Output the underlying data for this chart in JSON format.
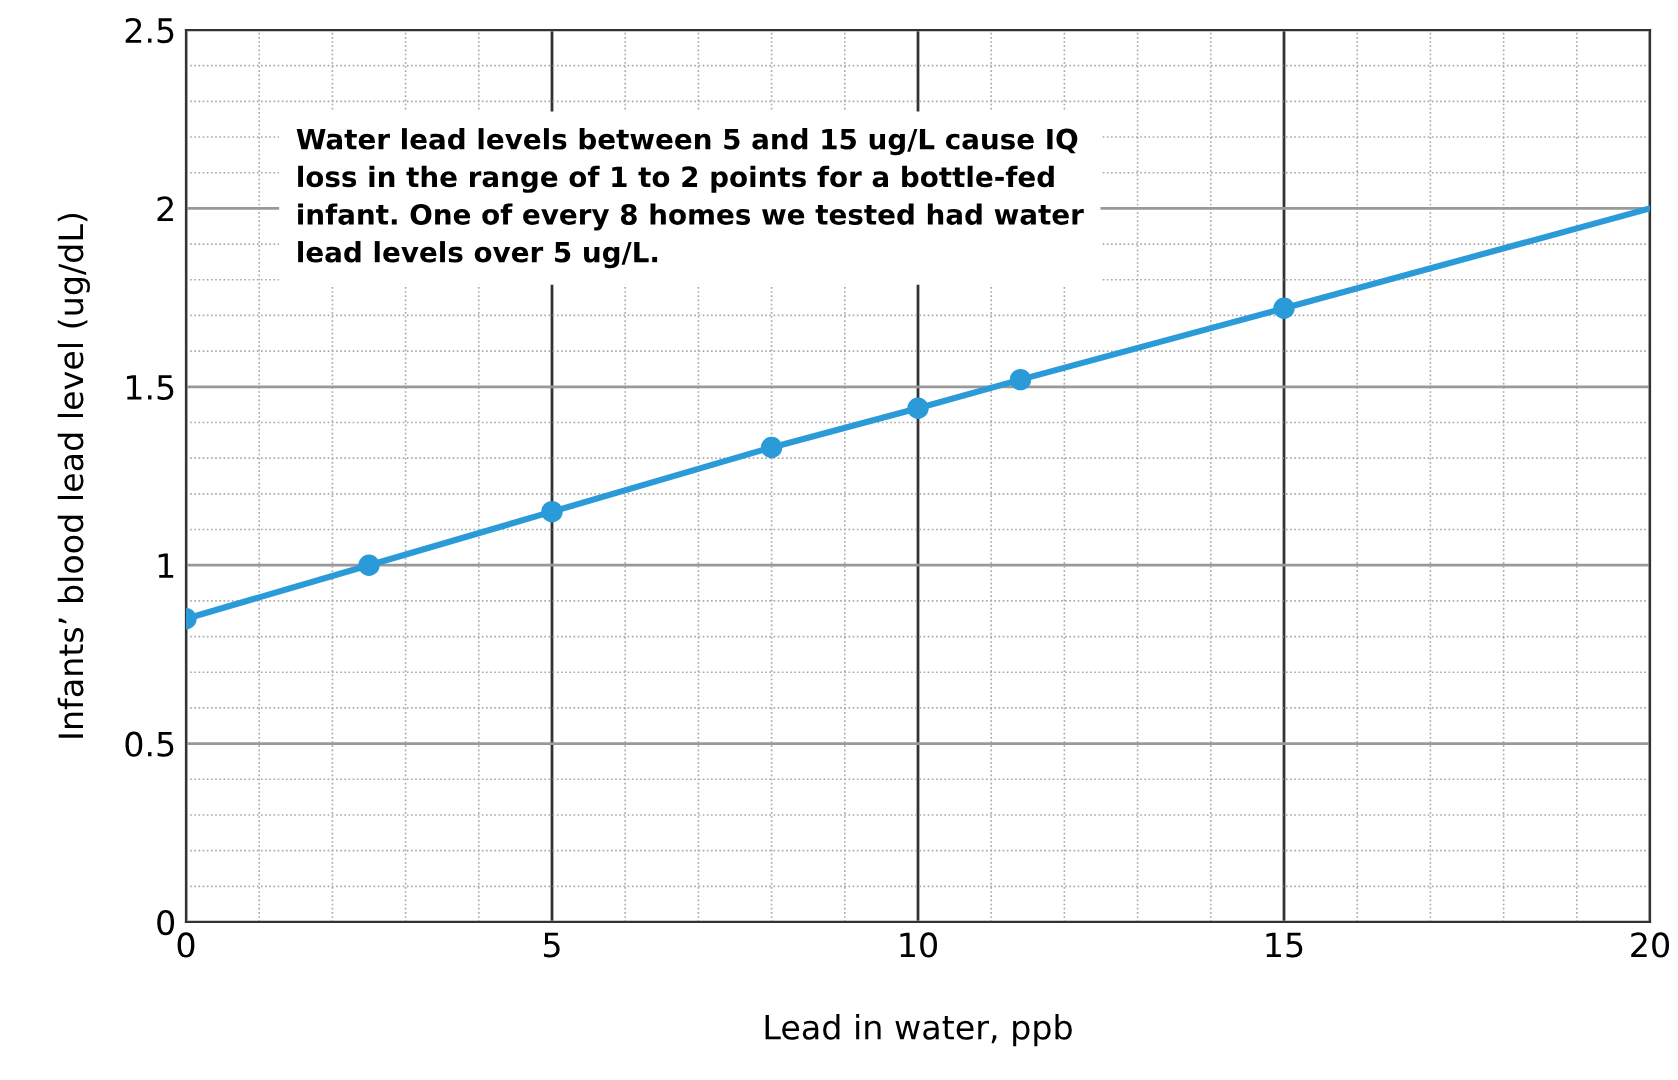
{
  "chart_data": {
    "type": "line",
    "xlabel": "Lead in water, ppb",
    "ylabel": "Infants’ blood lead level (ug/dL)",
    "annotations": [
      "Water lead levels between 5 and 15 ug/L cause IQ loss in the range of 1 to 2 points for a bottle-fed infant. One of every 8 homes we tested had water lead levels over 5 ug/L."
    ],
    "series": [
      {
        "color": "#2a9bd8",
        "marker": "none",
        "x": [
          0,
          2.5,
          5,
          8,
          10,
          11.4,
          15,
          20
        ],
        "values": [
          0.85,
          1.0,
          1.15,
          1.33,
          1.44,
          1.52,
          1.72,
          2.0
        ]
      },
      {
        "type": "scatter",
        "color": "#2a9bd8",
        "marker": "circle",
        "x": [
          0,
          2.5,
          5,
          8,
          10,
          11.4,
          15
        ],
        "values": [
          0.85,
          1.0,
          1.15,
          1.33,
          1.44,
          1.52,
          1.72
        ]
      }
    ],
    "xlim": [
      0,
      20
    ],
    "xticks": [
      0,
      5,
      10,
      15,
      20
    ],
    "ylim": [
      0,
      2.5
    ],
    "yticks": [
      0,
      0.5,
      1,
      1.5,
      2,
      2.5
    ],
    "grid": true
  }
}
